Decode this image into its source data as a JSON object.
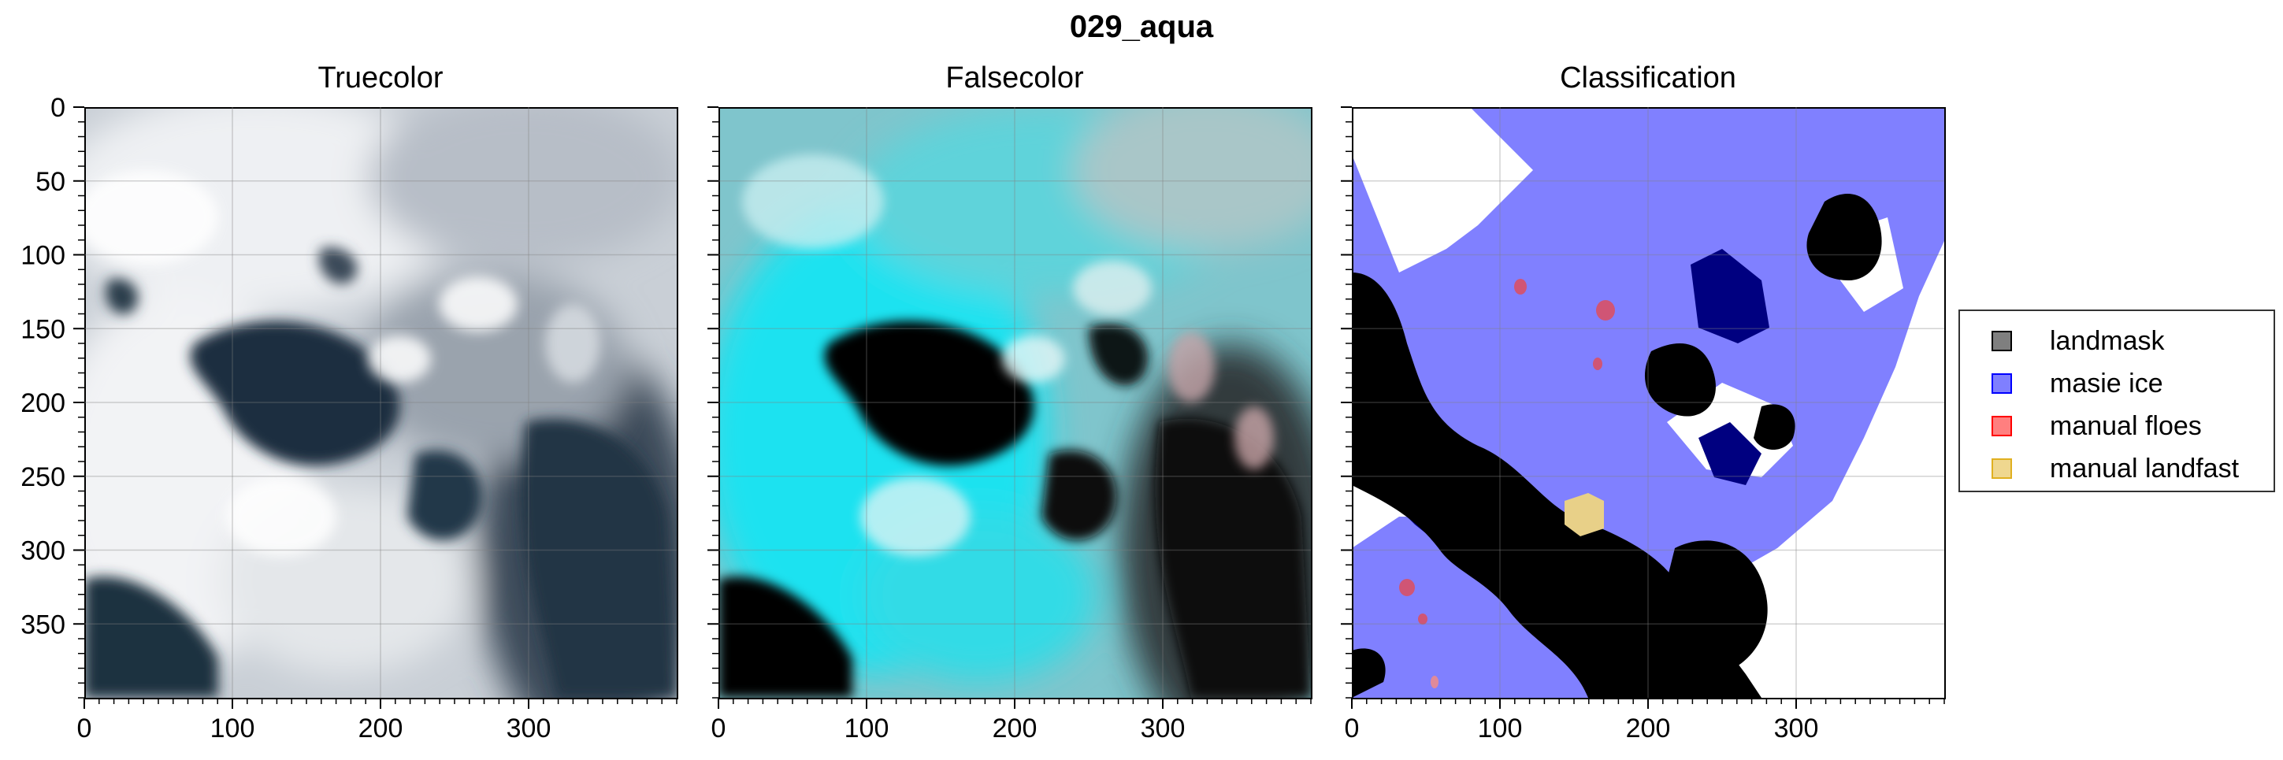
{
  "figure": {
    "title": "029_aqua"
  },
  "panels": [
    {
      "title": "Truecolor"
    },
    {
      "title": "Falsecolor"
    },
    {
      "title": "Classification"
    }
  ],
  "axes": {
    "x_ticks": [
      "0",
      "100",
      "200",
      "300"
    ],
    "y_ticks": [
      "0",
      "50",
      "100",
      "150",
      "200",
      "250",
      "300",
      "350"
    ],
    "xlim": [
      0,
      400
    ],
    "ylim": [
      400,
      0
    ],
    "x_major": [
      0,
      100,
      200,
      300
    ],
    "y_major": [
      0,
      50,
      100,
      150,
      200,
      250,
      300,
      350
    ],
    "minor_step": 10
  },
  "legend": {
    "placement": "right",
    "entries": [
      {
        "label": "landmask",
        "color": "#000000"
      },
      {
        "label": "masie ice",
        "color": "#0000ff"
      },
      {
        "label": "manual floes",
        "color": "#ff0000"
      },
      {
        "label": "manual landfast",
        "color": "#e0b020"
      }
    ]
  },
  "colors": {
    "truecolor_ice": "#e6e9ee",
    "truecolor_water": "#1b2e3e",
    "falsecolor_ice": "#25e6f2",
    "falsecolor_water": "#080808",
    "classification_masie": "#8080ff",
    "classification_overlap": "#000080",
    "classification_land": "#000000",
    "classification_floe": "#d05575",
    "classification_landfast": "#e8d088"
  }
}
